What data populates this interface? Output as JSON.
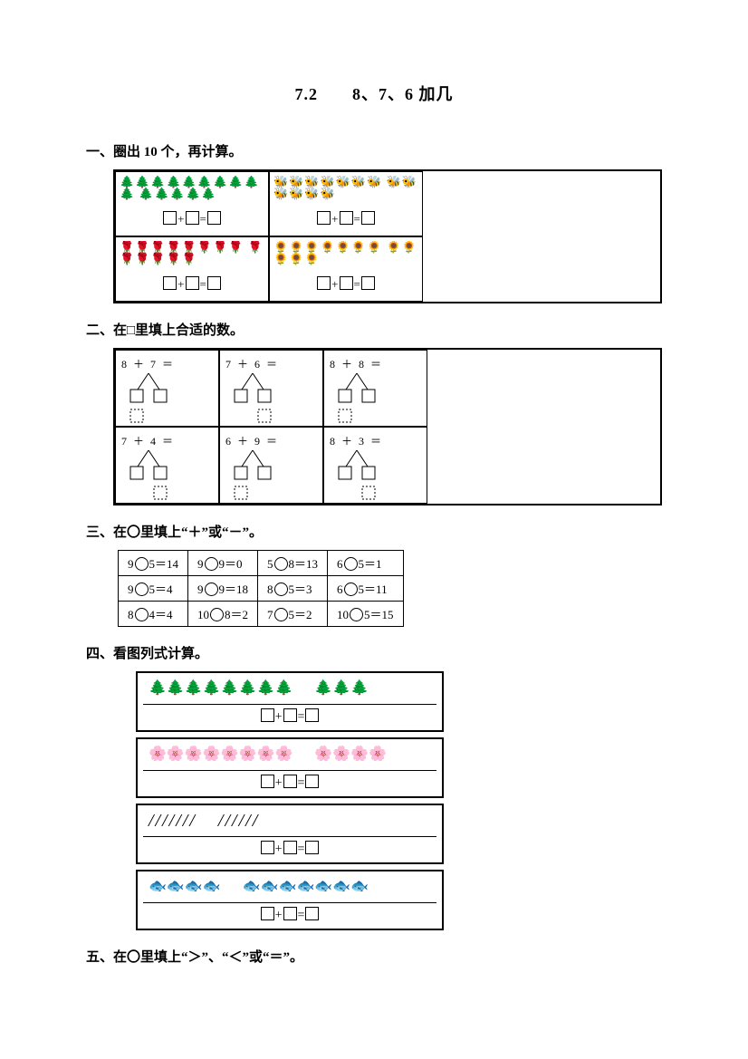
{
  "title": "7.2　　8、7、6 加几",
  "s1": {
    "heading": "一、圈出 10 个，再计算。",
    "cells": [
      {
        "objects": "🌲🌲🌲🌲🌲🌲🌲🌲🌲🌲\n🌲🌲🌲🌲🌲",
        "op": "+"
      },
      {
        "objects": "🐝🐝🐝🐝🐝🐝🐝\n🐝🐝🐝🐝🐝🐝",
        "op": "+"
      },
      {
        "objects": "🌹🌹🌹🌹🌹🌹🌹🌹\n🌹🌹🌹🌹🌹🌹",
        "op": "+"
      },
      {
        "objects": "🌻🌻🌻🌻🌻🌻🌻\n🌻🌻🌻🌻🌻",
        "op": "+"
      }
    ]
  },
  "s2": {
    "heading": "二、在□里填上合适的数。",
    "cells": [
      {
        "eq": "8 ＋ 7 ＝"
      },
      {
        "eq": "7 ＋ 6 ＝"
      },
      {
        "eq": "8 ＋ 8 ＝"
      },
      {
        "eq": "7 ＋ 4 ＝"
      },
      {
        "eq": "6 ＋ 9 ＝"
      },
      {
        "eq": "8 ＋ 3 ＝"
      }
    ]
  },
  "s3": {
    "heading": "三、在〇里填上“＋”或“－”。",
    "rows": [
      [
        {
          "a": "9",
          "b": "5",
          "r": "14"
        },
        {
          "a": "9",
          "b": "9",
          "r": "0"
        },
        {
          "a": "5",
          "b": "8",
          "r": "13"
        },
        {
          "a": "6",
          "b": "5",
          "r": "1"
        }
      ],
      [
        {
          "a": "9",
          "b": "5",
          "r": "4"
        },
        {
          "a": "9",
          "b": "9",
          "r": "18"
        },
        {
          "a": "8",
          "b": "5",
          "r": "3"
        },
        {
          "a": "6",
          "b": "5",
          "r": "11"
        }
      ],
      [
        {
          "a": "8",
          "b": "4",
          "r": "4"
        },
        {
          "a": "10",
          "b": "8",
          "r": "2"
        },
        {
          "a": "7",
          "b": "5",
          "r": "2"
        },
        {
          "a": "10",
          "b": "5",
          "r": "15"
        }
      ]
    ]
  },
  "s4": {
    "heading": "四、看图列式计算。",
    "rows": [
      {
        "left": "🌲🌲🌲🌲🌲🌲🌲🌲",
        "right": "🌲🌲🌲",
        "op": "+"
      },
      {
        "left": "🌸🌸🌸🌸🌸🌸🌸🌸",
        "right": "🌸🌸🌸🌸",
        "op": "+"
      },
      {
        "left": "///////",
        "right": "//////",
        "op": "+",
        "style": "italic"
      },
      {
        "left": "🐟🐟🐟🐟",
        "right": "🐟🐟🐟🐟🐟🐟🐟",
        "op": "+"
      }
    ]
  },
  "s5": {
    "heading": "五、在〇里填上“＞”、“＜”或“＝”。"
  },
  "colors": {
    "text": "#000000",
    "bg": "#ffffff",
    "border": "#000000"
  }
}
